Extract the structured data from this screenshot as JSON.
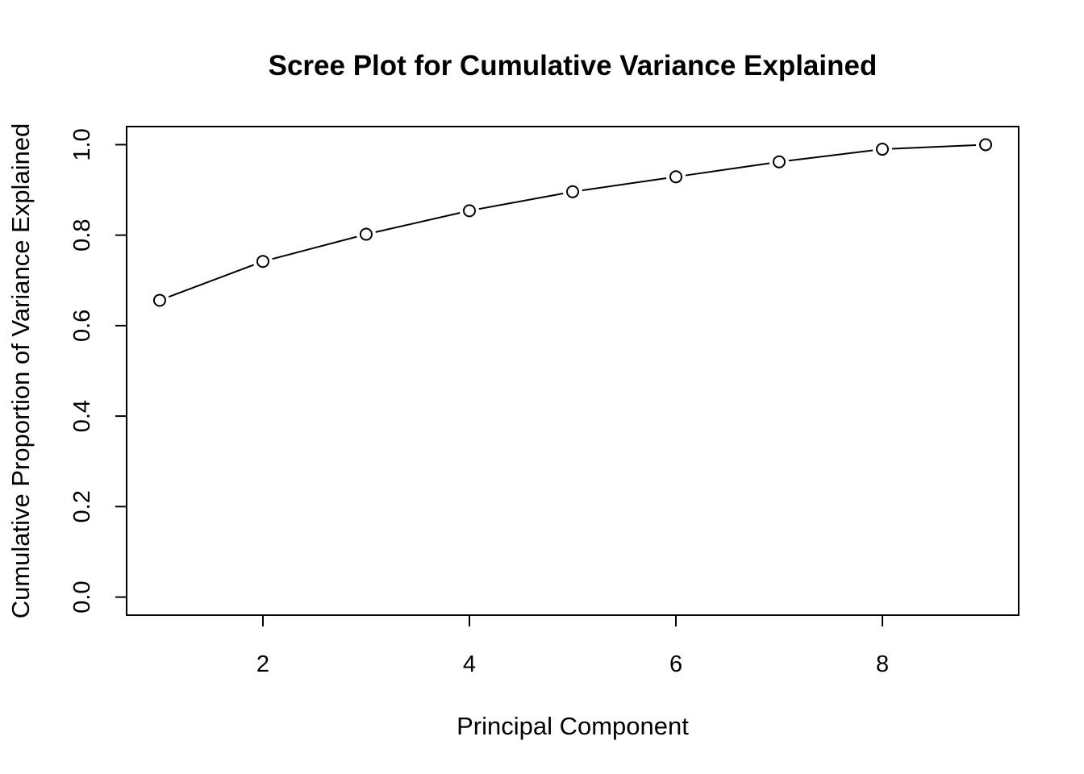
{
  "chart_data": {
    "type": "line",
    "title": "Scree Plot for Cumulative Variance Explained",
    "xlabel": "Principal Component",
    "ylabel": "Cumulative Proportion of Variance Explained",
    "x": [
      1,
      2,
      3,
      4,
      5,
      6,
      7,
      8,
      9
    ],
    "series": [
      {
        "values": [
          0.656,
          0.742,
          0.802,
          0.854,
          0.896,
          0.929,
          0.962,
          0.99,
          1.0
        ],
        "marker": "open-circle",
        "color": "#000000"
      }
    ],
    "xlim": [
      0.68,
      9.32
    ],
    "ylim": [
      -0.04,
      1.04
    ],
    "xticks": [
      2,
      4,
      6,
      8
    ],
    "xtick_labels": [
      "2",
      "4",
      "6",
      "8"
    ],
    "yticks": [
      0.0,
      0.2,
      0.4,
      0.6,
      0.8,
      1.0
    ],
    "ytick_labels": [
      "0.0",
      "0.2",
      "0.4",
      "0.6",
      "0.8",
      "1.0"
    ],
    "grid": false,
    "legend": "none"
  }
}
